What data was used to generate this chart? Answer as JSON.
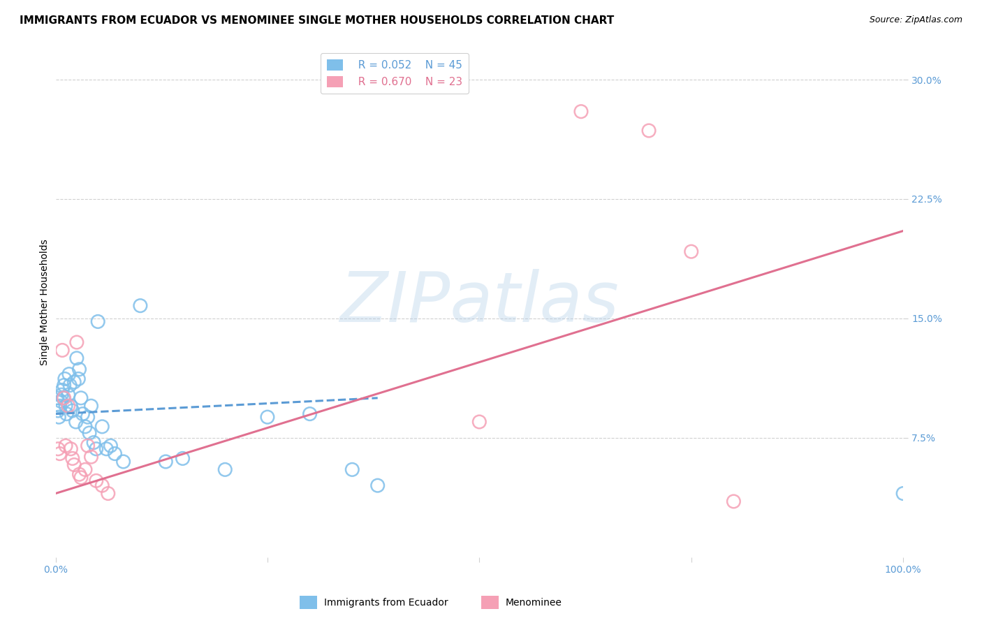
{
  "title": "IMMIGRANTS FROM ECUADOR VS MENOMINEE SINGLE MOTHER HOUSEHOLDS CORRELATION CHART",
  "source": "Source: ZipAtlas.com",
  "ylabel": "Single Mother Households",
  "xlim": [
    0.0,
    1.0
  ],
  "ylim": [
    0.0,
    0.32
  ],
  "yticks": [
    0.075,
    0.15,
    0.225,
    0.3
  ],
  "ytick_labels": [
    "7.5%",
    "15.0%",
    "22.5%",
    "30.0%"
  ],
  "xticks": [
    0.0,
    0.25,
    0.5,
    0.75,
    1.0
  ],
  "xtick_labels": [
    "0.0%",
    "",
    "",
    "",
    "100.0%"
  ],
  "legend_r1": "R = 0.052",
  "legend_n1": "N = 45",
  "legend_r2": "R = 0.670",
  "legend_n2": "N = 23",
  "color_blue": "#7fbfea",
  "color_pink": "#f5a0b5",
  "color_blue_line": "#5b9bd5",
  "color_pink_line": "#e07090",
  "watermark_text": "ZIPatlas",
  "blue_scatter_x": [
    0.002,
    0.003,
    0.004,
    0.005,
    0.006,
    0.007,
    0.008,
    0.009,
    0.01,
    0.011,
    0.012,
    0.013,
    0.015,
    0.016,
    0.017,
    0.018,
    0.02,
    0.022,
    0.024,
    0.025,
    0.027,
    0.028,
    0.03,
    0.032,
    0.035,
    0.038,
    0.04,
    0.042,
    0.045,
    0.048,
    0.05,
    0.055,
    0.06,
    0.065,
    0.07,
    0.08,
    0.1,
    0.13,
    0.15,
    0.2,
    0.25,
    0.3,
    0.35,
    0.38,
    1.0
  ],
  "blue_scatter_y": [
    0.1,
    0.092,
    0.088,
    0.095,
    0.098,
    0.102,
    0.105,
    0.1,
    0.108,
    0.112,
    0.095,
    0.09,
    0.102,
    0.115,
    0.108,
    0.095,
    0.092,
    0.11,
    0.085,
    0.125,
    0.112,
    0.118,
    0.1,
    0.09,
    0.082,
    0.088,
    0.078,
    0.095,
    0.072,
    0.068,
    0.148,
    0.082,
    0.068,
    0.07,
    0.065,
    0.06,
    0.158,
    0.06,
    0.062,
    0.055,
    0.088,
    0.09,
    0.055,
    0.045,
    0.04
  ],
  "pink_scatter_x": [
    0.003,
    0.005,
    0.008,
    0.01,
    0.012,
    0.015,
    0.018,
    0.02,
    0.022,
    0.025,
    0.028,
    0.03,
    0.035,
    0.038,
    0.042,
    0.048,
    0.055,
    0.062,
    0.5,
    0.62,
    0.7,
    0.75,
    0.8
  ],
  "pink_scatter_y": [
    0.068,
    0.065,
    0.13,
    0.1,
    0.07,
    0.095,
    0.068,
    0.062,
    0.058,
    0.135,
    0.052,
    0.05,
    0.055,
    0.07,
    0.063,
    0.048,
    0.045,
    0.04,
    0.085,
    0.28,
    0.268,
    0.192,
    0.035
  ],
  "blue_line_x": [
    0.0,
    0.38
  ],
  "blue_line_y": [
    0.09,
    0.1
  ],
  "pink_line_x": [
    0.0,
    1.0
  ],
  "pink_line_y": [
    0.04,
    0.205
  ],
  "grid_color": "#d0d0d0",
  "tick_color": "#5b9bd5",
  "title_fontsize": 11,
  "source_fontsize": 9,
  "axis_label_fontsize": 10,
  "tick_fontsize": 10,
  "legend_fontsize": 11,
  "scatter_size": 180,
  "scatter_lw": 1.8
}
